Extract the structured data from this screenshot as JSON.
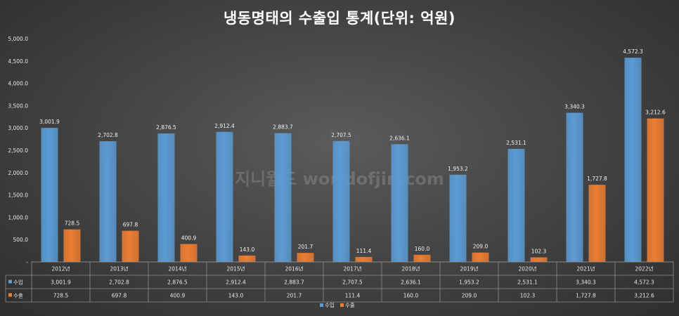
{
  "chart_data": {
    "type": "bar",
    "title": "냉동명태의 수출입 통계(단위: 억원)",
    "categories": [
      "2012년",
      "2013년",
      "2014년",
      "2015년",
      "2016년",
      "2017년",
      "2018년",
      "2019년",
      "2020년",
      "2021년",
      "2022년"
    ],
    "series": [
      {
        "name": "수입",
        "color": "#5b9bd5",
        "values": [
          3001.9,
          2702.8,
          2876.5,
          2912.4,
          2883.7,
          2707.5,
          2636.1,
          1953.2,
          2531.1,
          3340.3,
          4572.3
        ],
        "labels": [
          "3,001.9",
          "2,702.8",
          "2,876.5",
          "2,912.4",
          "2,883.7",
          "2,707.5",
          "2,636.1",
          "1,953.2",
          "2,531.1",
          "3,340.3",
          "4,572.3"
        ]
      },
      {
        "name": "수출",
        "color": "#ed7d31",
        "values": [
          728.5,
          697.8,
          400.9,
          143.0,
          201.7,
          111.4,
          160.0,
          209.0,
          102.3,
          1727.8,
          3212.6
        ],
        "labels": [
          "728.5",
          "697.8",
          "400.9",
          "143.0",
          "201.7",
          "111.4",
          "160.0",
          "209.0",
          "102.3",
          "1,727.8",
          "3,212.6"
        ]
      }
    ],
    "ylim": [
      0,
      5000
    ],
    "y_ticks": [
      0,
      500,
      1000,
      1500,
      2000,
      2500,
      3000,
      3500,
      4000,
      4500,
      5000
    ],
    "y_tick_labels": [
      "-",
      "500.0",
      "1,000.0",
      "1,500.0",
      "2,000.0",
      "2,500.0",
      "3,000.0",
      "3,500.0",
      "4,000.0",
      "4,500.0",
      "5,000.0"
    ],
    "grid": false,
    "legend": "bottom",
    "data_table": true
  },
  "watermark": "지니월드 worldofjin.com"
}
